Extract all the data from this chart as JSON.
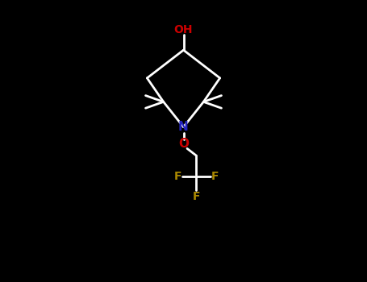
{
  "bg_color": "#000000",
  "bond_color_white": "#ffffff",
  "bond_width": 2.0,
  "N_color": "#2222bb",
  "O_color": "#cc0000",
  "F_color": "#aa8800",
  "fig_bg": "#000000",
  "xlim": [
    0,
    10
  ],
  "ylim": [
    0,
    10
  ]
}
